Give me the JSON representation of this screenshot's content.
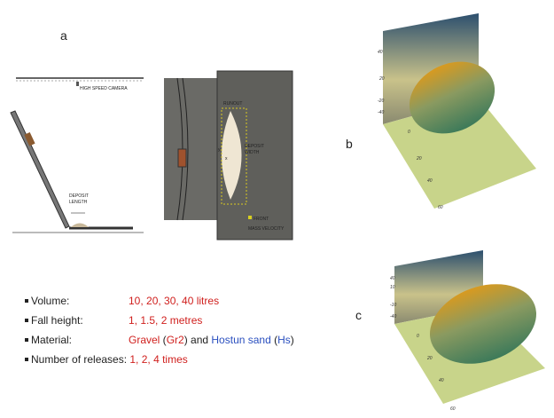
{
  "panel_a": {
    "label": "a",
    "camera": "HIGH SPEED CAMERA",
    "deposit_length": [
      "DEPOSIT",
      "LENGTH"
    ],
    "runout": "RUNOUT",
    "deposit_width": [
      "DEPOSIT",
      "WIDTH"
    ],
    "axis_y": "y",
    "axis_x": "x",
    "front_velocity": [
      "FRONT",
      "MASS VELOCITY"
    ]
  },
  "panel_b": {
    "label": "b",
    "ticks": [
      "40",
      "20",
      "-20",
      "-40",
      "0",
      "20",
      "40",
      "60"
    ]
  },
  "panel_c": {
    "label": "c",
    "ticks": [
      "40",
      "10",
      "-10",
      "-40",
      "0",
      "20",
      "40",
      "60"
    ]
  },
  "list": {
    "items": [
      {
        "name": "Volume:",
        "value": [
          "10, 20, 30, 40 litres"
        ]
      },
      {
        "name": "Fall height:",
        "value": [
          "1, 1.5, 2 metres"
        ]
      },
      {
        "name": "Material:",
        "value": [
          "Gravel",
          " (",
          "Gr2",
          ") and ",
          "Hostun sand",
          " (",
          "Hs",
          ")"
        ]
      },
      {
        "name": "Number of releases:",
        "value": [
          " 1, 2, 4 times"
        ]
      }
    ]
  }
}
